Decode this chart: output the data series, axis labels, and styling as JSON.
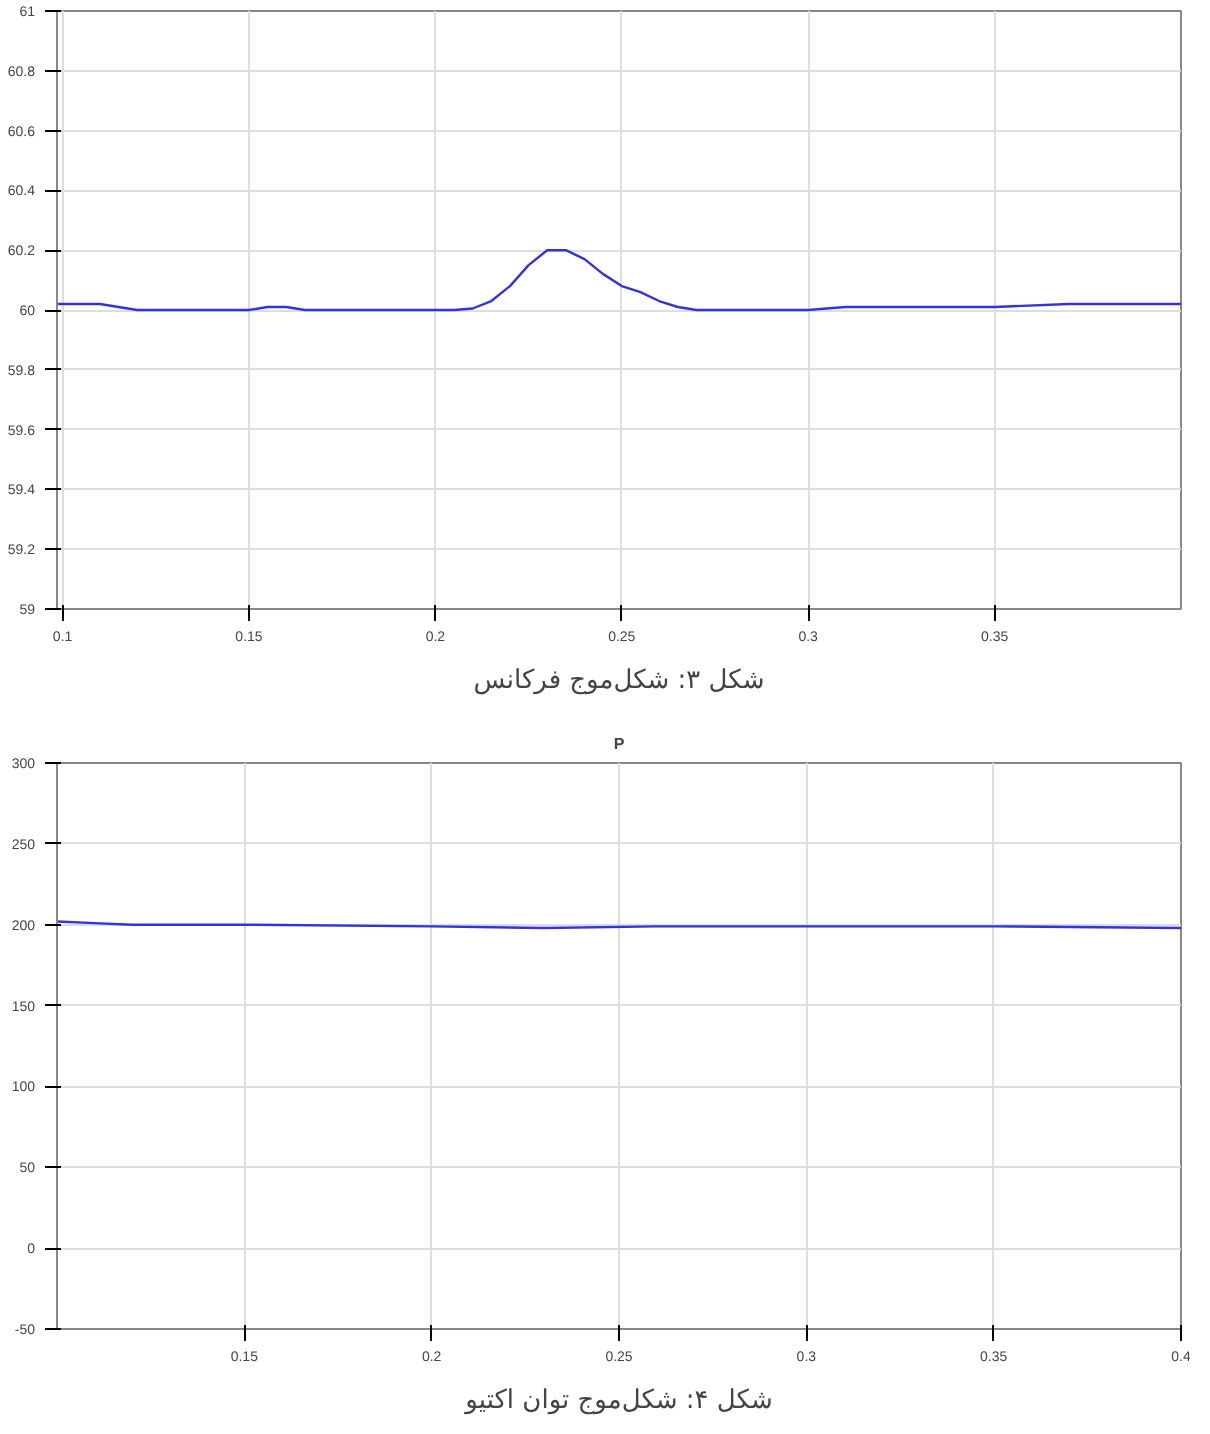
{
  "chart_data": [
    {
      "type": "line",
      "x": [
        0.0985,
        0.11,
        0.115,
        0.12,
        0.15,
        0.155,
        0.16,
        0.165,
        0.205,
        0.21,
        0.215,
        0.22,
        0.225,
        0.23,
        0.235,
        0.24,
        0.245,
        0.25,
        0.255,
        0.26,
        0.265,
        0.27,
        0.28,
        0.29,
        0.3,
        0.31,
        0.33,
        0.35,
        0.37,
        0.38,
        0.39,
        0.4
      ],
      "series": [
        {
          "color": "#3333dd",
          "values": [
            60.02,
            60.02,
            60.01,
            60.0,
            60.0,
            60.01,
            60.01,
            60.0,
            60.0,
            60.005,
            60.03,
            60.08,
            60.15,
            60.2,
            60.2,
            60.17,
            60.12,
            60.08,
            60.06,
            60.03,
            60.01,
            60.0,
            60.0,
            60.0,
            60.0,
            60.01,
            60.01,
            60.01,
            60.02,
            60.02,
            60.02,
            60.02
          ]
        }
      ],
      "xlim": [
        0.0985,
        0.4
      ],
      "xticks": [
        0.1,
        0.15,
        0.2,
        0.25,
        0.3,
        0.35
      ],
      "ylim": [
        59,
        61
      ],
      "yticks": [
        59,
        59.2,
        59.4,
        59.6,
        59.8,
        60,
        60.2,
        60.4,
        60.6,
        60.8,
        61
      ],
      "grid": true,
      "annotations": [
        "شکل ۳: شکل‌موج فرکانس"
      ]
    },
    {
      "type": "line",
      "title": "P",
      "x": [
        0.1,
        0.11,
        0.12,
        0.15,
        0.2,
        0.23,
        0.26,
        0.3,
        0.35,
        0.4
      ],
      "series": [
        {
          "color": "#3333dd",
          "values": [
            202,
            201,
            200,
            200,
            199,
            198,
            199,
            199,
            199,
            198
          ]
        }
      ],
      "xlim": [
        0.1,
        0.4
      ],
      "xticks": [
        0.15,
        0.2,
        0.25,
        0.3,
        0.35,
        0.4
      ],
      "ylim": [
        -50,
        300
      ],
      "yticks": [
        -50,
        0,
        50,
        100,
        150,
        200,
        250,
        300
      ],
      "grid": true,
      "annotations": [
        "شکل ۴: شکل‌موج توان اکتیو"
      ]
    }
  ]
}
